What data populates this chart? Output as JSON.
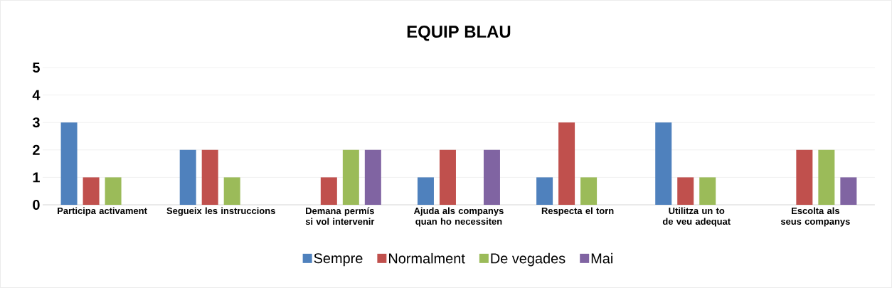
{
  "chart_data": {
    "type": "bar",
    "title": "EQUIP BLAU",
    "categories": [
      "Participa activament",
      "Segueix les instruccions",
      "Demana permís si vol intervenir",
      "Ajuda als companys quan ho necessiten",
      "Respecta el torn",
      "Utilitza un to de veu adequat",
      "Escolta als seus companys"
    ],
    "series": [
      {
        "name": "Sempre",
        "color": "#4f81bd",
        "values": [
          3,
          2,
          0,
          1,
          1,
          3,
          0
        ]
      },
      {
        "name": "Normalment",
        "color": "#c0504d",
        "values": [
          1,
          2,
          1,
          2,
          3,
          1,
          2
        ]
      },
      {
        "name": "De vegades",
        "color": "#9bbb59",
        "values": [
          1,
          1,
          2,
          0,
          1,
          1,
          2
        ]
      },
      {
        "name": "Mai",
        "color": "#8064a2",
        "values": [
          0,
          0,
          2,
          2,
          0,
          0,
          1
        ]
      }
    ],
    "ylim": [
      0,
      5
    ],
    "yticks": [
      0,
      1,
      2,
      3,
      4,
      5
    ],
    "grid": "y",
    "legend": "bottom"
  }
}
